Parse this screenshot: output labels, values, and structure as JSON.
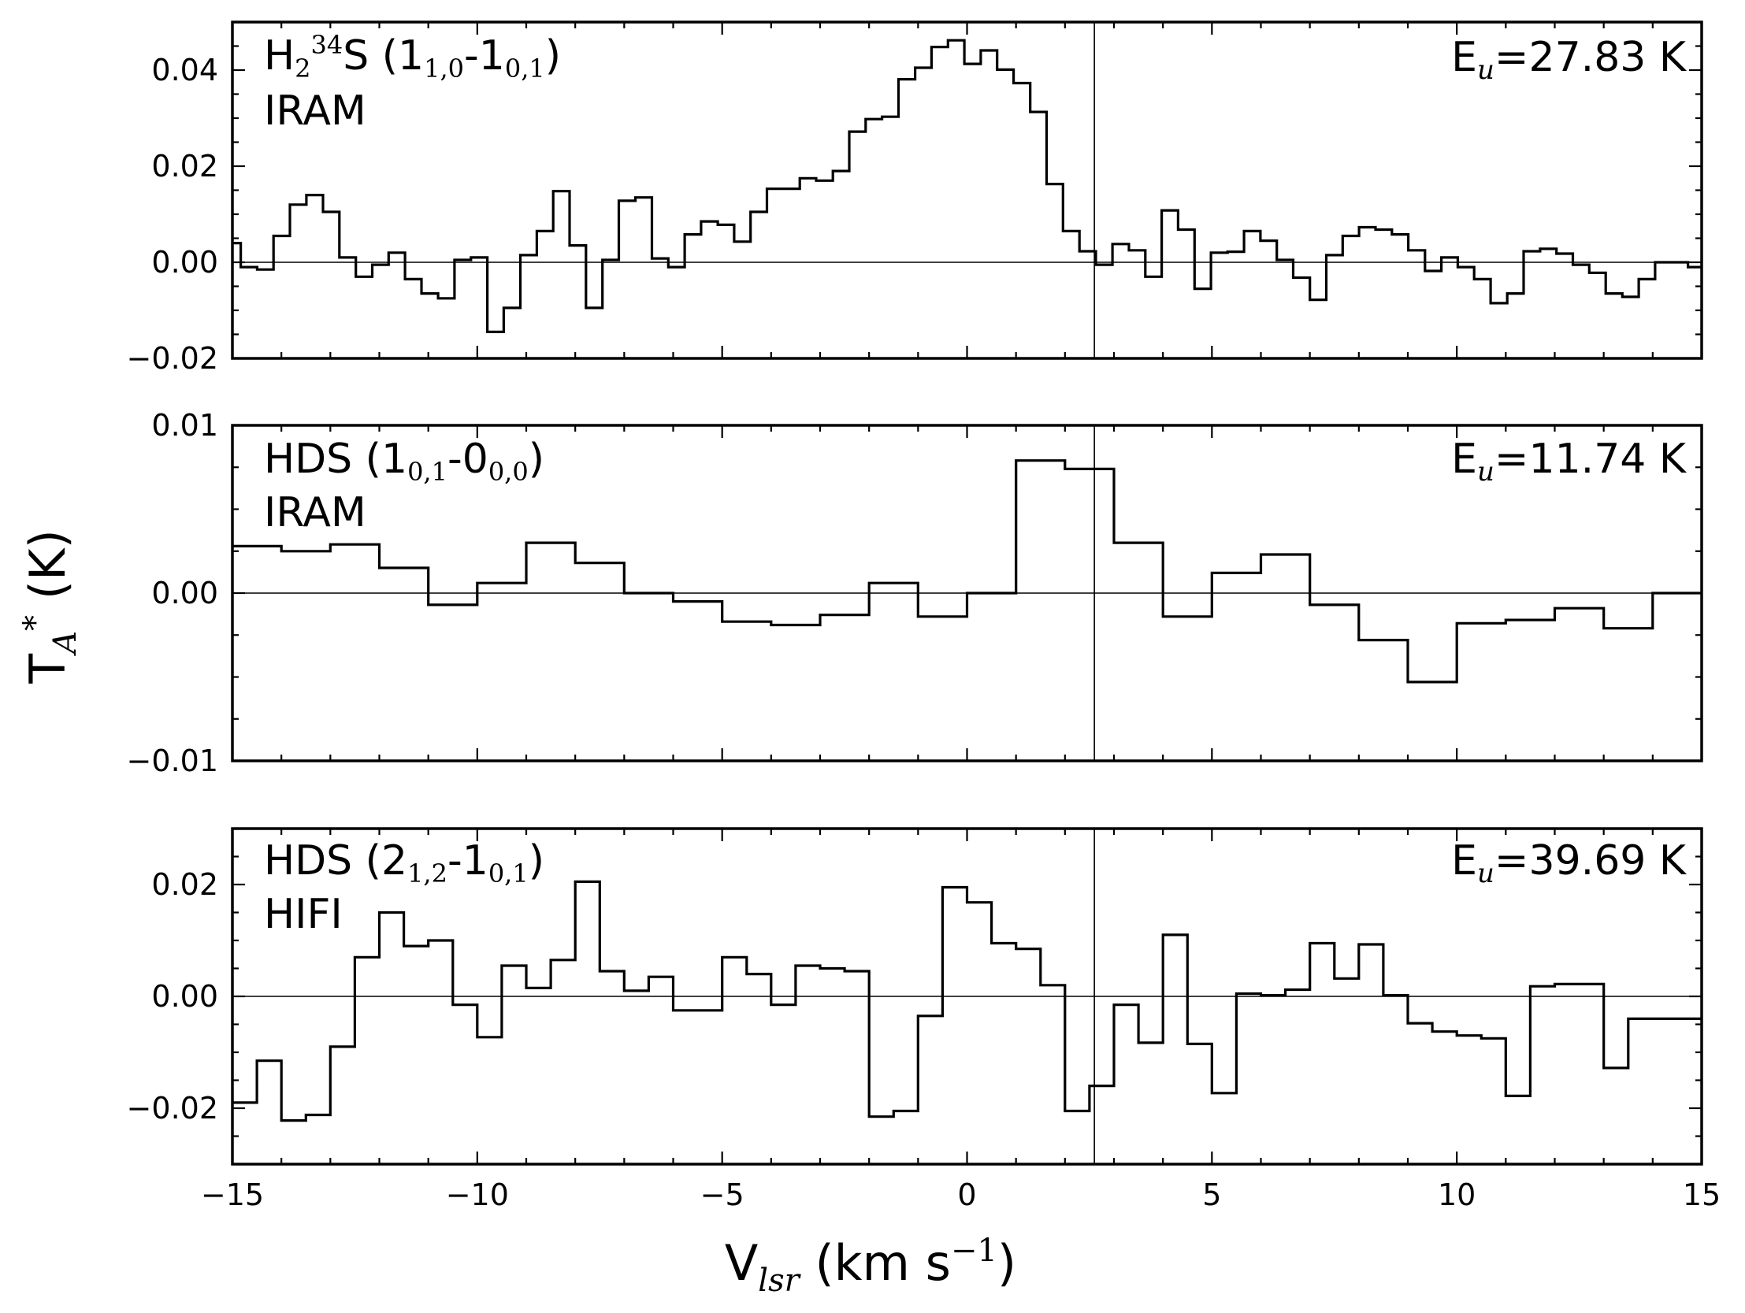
{
  "chart_data": [
    {
      "type": "line",
      "step": "mid",
      "xlim": [
        -15,
        15
      ],
      "ylim": [
        -0.02,
        0.05
      ],
      "yticks": [
        -0.02,
        0.0,
        0.02,
        0.04
      ],
      "ytick_labels": [
        "−0.02",
        "0.00",
        "0.02",
        "0.04"
      ],
      "grid": false,
      "hline_y": 0,
      "vline_x": 2.6,
      "label_main": "H",
      "label_sub1": "2",
      "label_sup": "34",
      "label_after": "S (1",
      "label_sub2": "1,0",
      "label_mid": "-1",
      "label_sub3": "0,1",
      "label_end": ")",
      "telescope": "IRAM",
      "eu_prefix": "E",
      "eu_sub": "u",
      "eu_value": "=27.83 K",
      "series": [
        {
          "x": [
            -15.0,
            -14.66,
            -14.33,
            -13.99,
            -13.66,
            -13.32,
            -12.98,
            -12.65,
            -12.31,
            -11.98,
            -11.64,
            -11.31,
            -10.97,
            -10.63,
            -10.3,
            -9.96,
            -9.63,
            -9.29,
            -8.95,
            -8.62,
            -8.28,
            -7.95,
            -7.61,
            -7.28,
            -6.94,
            -6.6,
            -6.27,
            -5.93,
            -5.6,
            -5.26,
            -4.92,
            -4.59,
            -4.25,
            -3.92,
            -3.58,
            -3.25,
            -2.91,
            -2.57,
            -2.24,
            -1.9,
            -1.57,
            -1.23,
            -0.89,
            -0.56,
            -0.22,
            0.11,
            0.45,
            0.78,
            1.12,
            1.46,
            1.79,
            2.13,
            2.46,
            2.8,
            3.14,
            3.47,
            3.81,
            4.14,
            4.48,
            4.81,
            5.15,
            5.49,
            5.82,
            6.16,
            6.49,
            6.83,
            7.17,
            7.5,
            7.84,
            8.17,
            8.51,
            8.84,
            9.18,
            9.52,
            9.85,
            10.19,
            10.52,
            10.86,
            11.2,
            11.53,
            11.87,
            12.2,
            12.54,
            12.87,
            13.21,
            13.55,
            13.88,
            14.22,
            14.55,
            14.89
          ],
          "y": [
            0.004,
            -0.001,
            -0.0015,
            0.0055,
            0.012,
            0.014,
            0.0105,
            0.001,
            -0.003,
            -0.0005,
            0.002,
            -0.0035,
            -0.0065,
            -0.0075,
            0.0005,
            0.001,
            -0.0145,
            -0.0095,
            0.0015,
            0.0065,
            0.0148,
            0.0035,
            -0.0095,
            0.0005,
            0.0128,
            0.0135,
            0.0008,
            -0.001,
            0.0058,
            0.0085,
            0.0078,
            0.0043,
            0.0105,
            0.0153,
            0.0153,
            0.0175,
            0.017,
            0.019,
            0.0272,
            0.0298,
            0.0303,
            0.0381,
            0.0405,
            0.0448,
            0.0462,
            0.0413,
            0.0441,
            0.0401,
            0.0373,
            0.0313,
            0.0163,
            0.0065,
            0.0023,
            -0.0005,
            0.0038,
            0.0025,
            -0.003,
            0.0108,
            0.0068,
            -0.0055,
            0.002,
            0.0022,
            0.0065,
            0.0045,
            0.0005,
            -0.0032,
            -0.0078,
            0.0015,
            0.0055,
            0.0073,
            0.0068,
            0.0058,
            0.0025,
            -0.0018,
            0.001,
            -0.001,
            -0.0035,
            -0.0085,
            -0.0065,
            0.0023,
            0.0028,
            0.0018,
            -0.0005,
            -0.0022,
            -0.0065,
            -0.0072,
            -0.0035,
            0.0,
            0.0,
            -0.001
          ]
        }
      ]
    },
    {
      "type": "line",
      "step": "mid",
      "xlim": [
        -15,
        15
      ],
      "ylim": [
        -0.01,
        0.01
      ],
      "yticks": [
        -0.01,
        0.0,
        0.01
      ],
      "ytick_labels": [
        "−0.01",
        "0.00",
        "0.01"
      ],
      "grid": false,
      "hline_y": 0,
      "vline_x": 2.6,
      "label_main": "HDS (1",
      "label_sub1": "0,1",
      "label_mid": "-0",
      "label_sub2": "0,0",
      "label_end": ")",
      "telescope": "IRAM",
      "eu_prefix": "E",
      "eu_sub": "u",
      "eu_value": "=11.74 K",
      "series": [
        {
          "x": [
            -14.5,
            -13.5,
            -12.5,
            -11.5,
            -10.5,
            -9.5,
            -8.5,
            -7.5,
            -6.5,
            -5.5,
            -4.5,
            -3.5,
            -2.5,
            -1.5,
            -0.5,
            0.5,
            1.5,
            2.5,
            3.5,
            4.5,
            5.5,
            6.5,
            7.5,
            8.5,
            9.5,
            10.5,
            11.5,
            12.5,
            13.5,
            14.5
          ],
          "y": [
            0.0028,
            0.0025,
            0.0029,
            0.0015,
            -0.0007,
            0.0006,
            0.003,
            0.0018,
            0.0,
            -0.0005,
            -0.0017,
            -0.0019,
            -0.0013,
            0.0006,
            -0.0014,
            0.0,
            0.0079,
            0.0074,
            0.003,
            -0.0014,
            0.0012,
            0.0023,
            -0.0007,
            -0.0028,
            -0.0053,
            -0.0018,
            -0.0016,
            -0.0009,
            -0.0021,
            0.0
          ]
        }
      ]
    },
    {
      "type": "line",
      "step": "mid",
      "xlim": [
        -15,
        15
      ],
      "ylim": [
        -0.03,
        0.03
      ],
      "yticks": [
        -0.02,
        0.0,
        0.02
      ],
      "ytick_labels": [
        "−0.02",
        "0.00",
        "0.02"
      ],
      "xticks": [
        -15,
        -10,
        -5,
        0,
        5,
        10,
        15
      ],
      "xtick_labels": [
        "−15",
        "−10",
        "−5",
        "0",
        "5",
        "10",
        "15"
      ],
      "grid": false,
      "hline_y": 0,
      "vline_x": 2.6,
      "label_main": "HDS (2",
      "label_sub1": "1,2",
      "label_mid": "-1",
      "label_sub2": "0,1",
      "label_end": ")",
      "telescope": "HIFI",
      "eu_prefix": "E",
      "eu_sub": "u",
      "eu_value": "=39.69 K",
      "xlabel_main": "V",
      "xlabel_sub": "lsr",
      "xlabel_rest": " (km s",
      "xlabel_sup": "−1",
      "xlabel_end": ")",
      "ylabel_main": "T",
      "ylabel_sub": "A",
      "ylabel_sup": "*",
      "ylabel_rest": "  (K)",
      "series": [
        {
          "x": [
            -14.75,
            -14.25,
            -13.75,
            -13.25,
            -12.75,
            -12.25,
            -11.75,
            -11.25,
            -10.75,
            -10.25,
            -9.75,
            -9.25,
            -8.75,
            -8.25,
            -7.75,
            -7.25,
            -6.75,
            -6.25,
            -5.75,
            -5.25,
            -4.75,
            -4.25,
            -3.75,
            -3.25,
            -2.75,
            -2.25,
            -1.75,
            -1.25,
            -0.75,
            -0.25,
            0.25,
            0.75,
            1.25,
            1.75,
            2.25,
            2.75,
            3.25,
            3.75,
            4.25,
            4.75,
            5.25,
            5.75,
            6.25,
            6.75,
            7.25,
            7.75,
            8.25,
            8.75,
            9.25,
            9.75,
            10.25,
            10.75,
            11.25,
            11.75,
            12.25,
            12.75,
            13.25,
            13.75,
            14.25,
            14.75
          ],
          "y": [
            -0.019,
            -0.0115,
            -0.0222,
            -0.0212,
            -0.009,
            0.007,
            0.015,
            0.009,
            0.01,
            -0.0015,
            -0.0073,
            0.0055,
            0.0015,
            0.0065,
            0.0205,
            0.0045,
            0.001,
            0.0035,
            -0.0025,
            -0.0025,
            0.007,
            0.004,
            -0.0015,
            0.0055,
            0.005,
            0.0045,
            -0.0215,
            -0.0205,
            -0.0035,
            0.0195,
            0.0168,
            0.0095,
            0.0085,
            0.002,
            -0.0205,
            -0.016,
            -0.0015,
            -0.0083,
            0.011,
            -0.0085,
            -0.0173,
            0.0005,
            0.0002,
            0.0012,
            0.0095,
            0.0032,
            0.0093,
            0.0002,
            -0.0048,
            -0.0063,
            -0.007,
            -0.0075,
            -0.0178,
            0.0018,
            0.0022,
            0.0022,
            -0.0128,
            -0.004,
            -0.004,
            -0.004
          ]
        }
      ]
    }
  ]
}
